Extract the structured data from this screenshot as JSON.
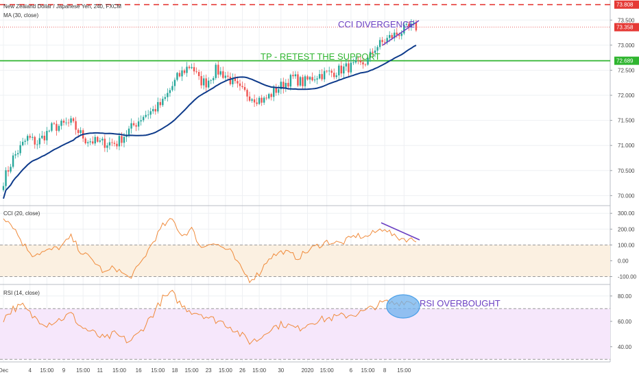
{
  "header": {
    "symbol_title": "New Zealand Dollar / Japanese Yen, 240, FXCM",
    "ma_label": "MA (30, close)",
    "cci_label": "CCI (20, close)",
    "rsi_label": "RSI (14, close)"
  },
  "annotations": {
    "cci_divergence": "CCI DIVERGENCE",
    "tp_support": "TP - RETEST THE SUPPORT",
    "rsi_overbought": "RSI OVERBOUGHT"
  },
  "colors": {
    "up": "#26a69a",
    "down": "#ef5350",
    "ma": "#0d3a8a",
    "cci": "#f08a3a",
    "rsi": "#f08a3a",
    "support": "#2fb52f",
    "resistance": "#e53935",
    "divergence": "#6a3fc2",
    "cci_band": "#fbf0e1",
    "rsi_band": "#f6e7fb",
    "ellipse": "#4a9fe8"
  },
  "chart_data": [
    {
      "type": "candlestick",
      "name": "price",
      "ylim": [
        69.8,
        73.9
      ],
      "yticks": [
        "73.500",
        "73.000",
        "72.500",
        "72.000",
        "71.500",
        "71.000",
        "70.500",
        "70.000"
      ],
      "ytick_values": [
        73.5,
        73.0,
        72.5,
        72.0,
        71.5,
        71.0,
        70.5,
        70.0
      ],
      "price_labels": [
        {
          "text": "73.808",
          "value": 73.808,
          "color": "#e53935"
        },
        {
          "text": "73.358",
          "value": 73.358,
          "color": "#e53935"
        },
        {
          "text": "72.689",
          "value": 72.689,
          "color": "#2fb52f"
        }
      ],
      "resistance_level": 73.808,
      "last_price_level": 73.358,
      "support_level": 72.689,
      "ma_label": "MA (30, close)"
    },
    {
      "type": "line",
      "name": "CCI",
      "ylim": [
        -150,
        340
      ],
      "yticks": [
        "300.00",
        "200.00",
        "100.00",
        "0.00",
        "-100.00"
      ],
      "ytick_values": [
        300,
        200,
        100,
        0,
        -100
      ],
      "band": [
        -100,
        100
      ]
    },
    {
      "type": "line",
      "name": "RSI",
      "ylim": [
        28,
        88
      ],
      "yticks": [
        "80.00",
        "60.00",
        "40.00"
      ],
      "ytick_values": [
        80,
        60,
        40
      ],
      "band": [
        30,
        70
      ]
    }
  ],
  "x_axis": {
    "labels": [
      "Dec",
      "4",
      "15:00",
      "9",
      "15:00",
      "11",
      "15:00",
      "16",
      "15:00",
      "18",
      "15:00",
      "23",
      "15:00",
      "26",
      "15:00",
      "30",
      "2020",
      "15:00",
      "6",
      "15:00",
      "8",
      "15:00"
    ],
    "label_bars": [
      0,
      11,
      18,
      25,
      33,
      40,
      48,
      56,
      64,
      71,
      78,
      85,
      92,
      99,
      106,
      115,
      126,
      134,
      144,
      151,
      158,
      166
    ]
  }
}
